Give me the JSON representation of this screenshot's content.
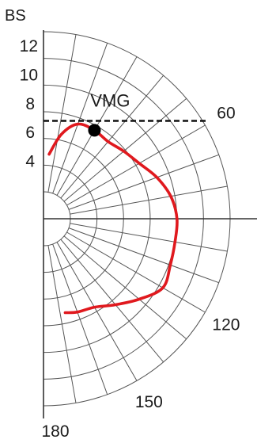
{
  "chart_data": {
    "type": "line",
    "subtype": "polar-half",
    "ylabel": "BS",
    "r_ticks": [
      4,
      6,
      8,
      10,
      12
    ],
    "angle_ticks": [
      60,
      120,
      150,
      180
    ],
    "angle_range": [
      0,
      180
    ],
    "r_max": 13,
    "grid": true,
    "series": [
      {
        "color": "#e0191e",
        "points": [
          {
            "angle": 5,
            "r": 4.5
          },
          {
            "angle": 12,
            "r": 6.0
          },
          {
            "angle": 20,
            "r": 7.0
          },
          {
            "angle": 30,
            "r": 7.1
          },
          {
            "angle": 40,
            "r": 7.0
          },
          {
            "angle": 50,
            "r": 7.3
          },
          {
            "angle": 60,
            "r": 7.7
          },
          {
            "angle": 70,
            "r": 8.4
          },
          {
            "angle": 80,
            "r": 9.0
          },
          {
            "angle": 90,
            "r": 9.3
          },
          {
            "angle": 100,
            "r": 9.3
          },
          {
            "angle": 110,
            "r": 9.4
          },
          {
            "angle": 120,
            "r": 9.6
          },
          {
            "angle": 130,
            "r": 8.7
          },
          {
            "angle": 140,
            "r": 7.8
          },
          {
            "angle": 150,
            "r": 7.1
          },
          {
            "angle": 160,
            "r": 6.9
          },
          {
            "angle": 167,
            "r": 6.7
          }
        ]
      }
    ],
    "annotations": {
      "vmg_label": "VMG",
      "vmg_point": {
        "angle": 30,
        "r": 7.1
      },
      "vmg_line_value": 6.8
    }
  }
}
